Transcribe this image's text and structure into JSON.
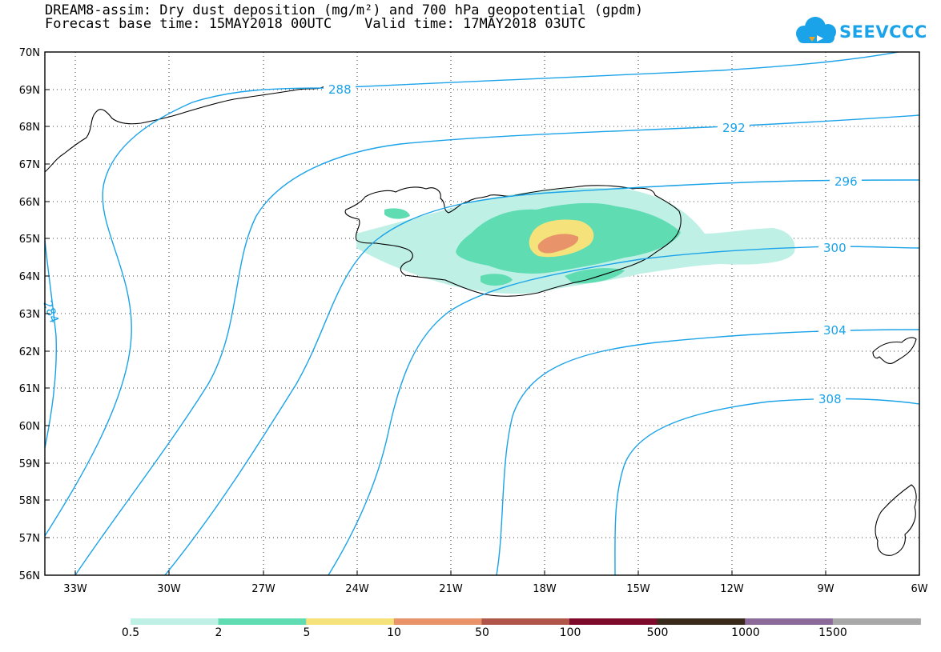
{
  "title": {
    "line1": "DREAM8-assim: Dry dust deposition (mg/m²) and 700 hPa geopotential (gpdm)",
    "line2": "Forecast base time: 15MAY2018 00UTC    Valid time: 17MAY2018 03UTC"
  },
  "logo": {
    "text": "SEEVCCC",
    "icon": "cloud-icon",
    "color": "#1aa3e8"
  },
  "map": {
    "lat_labels": [
      "70N",
      "69N",
      "68N",
      "67N",
      "66N",
      "65N",
      "64N",
      "63N",
      "62N",
      "61N",
      "60N",
      "59N",
      "58N",
      "57N",
      "56N"
    ],
    "lon_labels": [
      "33W",
      "30W",
      "27W",
      "24W",
      "21W",
      "18W",
      "15W",
      "12W",
      "9W",
      "6W"
    ],
    "lat_range": [
      56,
      70
    ],
    "lon_range": [
      -34.4,
      -6
    ],
    "contour_color": "#1aa3e8",
    "contour_labels": [
      "288",
      "292",
      "296",
      "300",
      "304",
      "308",
      "284"
    ]
  },
  "colorbar": {
    "colors": [
      "#bff0e6",
      "#5fdcb2",
      "#f5e27a",
      "#e8936a",
      "#b0554a",
      "#7d0a2a",
      "#3a2a1c",
      "#8b6a9a",
      "#a8a8a8"
    ],
    "tick_labels": [
      "0.5",
      "2",
      "5",
      "10",
      "50",
      "100",
      "500",
      "1000",
      "1500"
    ]
  }
}
